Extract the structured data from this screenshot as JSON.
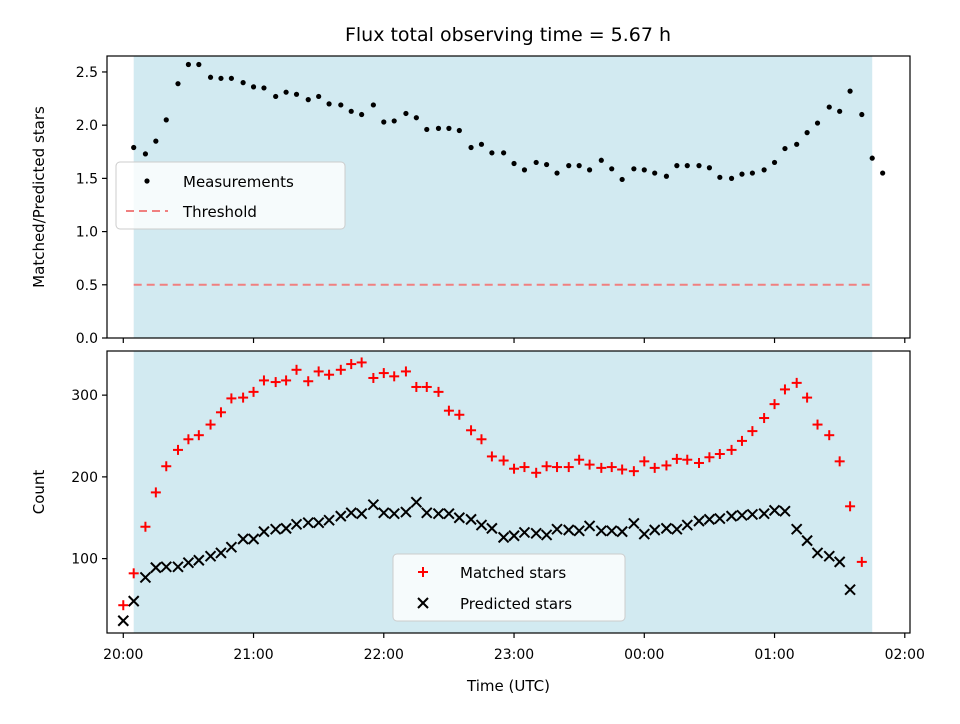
{
  "chart_data": {
    "title": "Flux total observing time = 5.67 h",
    "colors": {
      "shade": "#add8e6",
      "measurements": "#000000",
      "threshold": "#f08080",
      "matched": "#ff0000",
      "predicted": "#000000"
    },
    "xlabel": "Time (UTC)",
    "x_tick_labels": [
      "20:00",
      "21:00",
      "22:00",
      "23:00",
      "00:00",
      "01:00",
      "02:00"
    ],
    "x_range_hours": [
      19.875,
      26.04
    ],
    "observing_window_hours": [
      20.08,
      25.75
    ],
    "panels": [
      {
        "type": "scatter",
        "ylabel": "Matched/Predicted stars",
        "ylim": [
          0,
          2.65
        ],
        "y_ticks": [
          "0.0",
          "0.5",
          "1.0",
          "1.5",
          "2.0",
          "2.5"
        ],
        "legend": {
          "placement": "center-left",
          "entries": [
            "Measurements",
            "Threshold"
          ]
        },
        "threshold": 0.5,
        "series": [
          {
            "name": "Measurements",
            "marker": "dot",
            "points": [
              [
                20.08,
                1.79
              ],
              [
                20.17,
                1.73
              ],
              [
                20.25,
                1.85
              ],
              [
                20.33,
                2.05
              ],
              [
                20.42,
                2.39
              ],
              [
                20.5,
                2.57
              ],
              [
                20.58,
                2.57
              ],
              [
                20.67,
                2.45
              ],
              [
                20.75,
                2.44
              ],
              [
                20.83,
                2.44
              ],
              [
                20.92,
                2.4
              ],
              [
                21.0,
                2.36
              ],
              [
                21.08,
                2.35
              ],
              [
                21.17,
                2.27
              ],
              [
                21.25,
                2.31
              ],
              [
                21.33,
                2.29
              ],
              [
                21.42,
                2.24
              ],
              [
                21.5,
                2.27
              ],
              [
                21.58,
                2.2
              ],
              [
                21.67,
                2.19
              ],
              [
                21.75,
                2.13
              ],
              [
                21.83,
                2.1
              ],
              [
                21.92,
                2.19
              ],
              [
                22.0,
                2.03
              ],
              [
                22.08,
                2.04
              ],
              [
                22.17,
                2.11
              ],
              [
                22.25,
                2.07
              ],
              [
                22.33,
                1.96
              ],
              [
                22.42,
                1.97
              ],
              [
                22.5,
                1.97
              ],
              [
                22.58,
                1.95
              ],
              [
                22.67,
                1.79
              ],
              [
                22.75,
                1.82
              ],
              [
                22.83,
                1.74
              ],
              [
                22.92,
                1.74
              ],
              [
                23.0,
                1.64
              ],
              [
                23.08,
                1.58
              ],
              [
                23.17,
                1.65
              ],
              [
                23.25,
                1.63
              ],
              [
                23.33,
                1.55
              ],
              [
                23.42,
                1.62
              ],
              [
                23.5,
                1.62
              ],
              [
                23.58,
                1.58
              ],
              [
                23.67,
                1.67
              ],
              [
                23.75,
                1.59
              ],
              [
                23.83,
                1.49
              ],
              [
                23.92,
                1.59
              ],
              [
                24.0,
                1.58
              ],
              [
                24.08,
                1.55
              ],
              [
                24.17,
                1.52
              ],
              [
                24.25,
                1.62
              ],
              [
                24.33,
                1.62
              ],
              [
                24.42,
                1.62
              ],
              [
                24.5,
                1.6
              ],
              [
                24.58,
                1.51
              ],
              [
                24.67,
                1.5
              ],
              [
                24.75,
                1.54
              ],
              [
                24.83,
                1.55
              ],
              [
                24.92,
                1.58
              ],
              [
                25.0,
                1.65
              ],
              [
                25.08,
                1.78
              ],
              [
                25.17,
                1.82
              ],
              [
                25.25,
                1.93
              ],
              [
                25.33,
                2.02
              ],
              [
                25.42,
                2.17
              ],
              [
                25.5,
                2.13
              ],
              [
                25.58,
                2.32
              ],
              [
                25.67,
                2.1
              ],
              [
                25.75,
                1.69
              ],
              [
                25.83,
                1.55
              ]
            ]
          }
        ]
      },
      {
        "type": "scatter",
        "ylabel": "Count",
        "ylim": [
          9,
          354
        ],
        "y_ticks": [
          "100",
          "200",
          "300"
        ],
        "legend": {
          "placement": "lower-center",
          "entries": [
            "Matched stars",
            "Predicted stars"
          ]
        },
        "series": [
          {
            "name": "Matched stars",
            "marker": "plus",
            "points": [
              [
                20.0,
                43
              ],
              [
                20.08,
                82
              ],
              [
                20.17,
                139
              ],
              [
                20.25,
                181
              ],
              [
                20.33,
                213
              ],
              [
                20.42,
                233
              ],
              [
                20.5,
                246
              ],
              [
                20.58,
                251
              ],
              [
                20.67,
                264
              ],
              [
                20.75,
                279
              ],
              [
                20.83,
                296
              ],
              [
                20.92,
                297
              ],
              [
                21.0,
                304
              ],
              [
                21.08,
                318
              ],
              [
                21.17,
                316
              ],
              [
                21.25,
                318
              ],
              [
                21.33,
                331
              ],
              [
                21.42,
                317
              ],
              [
                21.5,
                329
              ],
              [
                21.58,
                325
              ],
              [
                21.67,
                331
              ],
              [
                21.75,
                338
              ],
              [
                21.83,
                340
              ],
              [
                21.92,
                321
              ],
              [
                22.0,
                327
              ],
              [
                22.08,
                323
              ],
              [
                22.17,
                329
              ],
              [
                22.25,
                310
              ],
              [
                22.33,
                310
              ],
              [
                22.42,
                304
              ],
              [
                22.5,
                281
              ],
              [
                22.58,
                276
              ],
              [
                22.67,
                257
              ],
              [
                22.75,
                246
              ],
              [
                22.83,
                225
              ],
              [
                22.92,
                220
              ],
              [
                23.0,
                210
              ],
              [
                23.08,
                212
              ],
              [
                23.17,
                205
              ],
              [
                23.25,
                213
              ],
              [
                23.33,
                212
              ],
              [
                23.42,
                212
              ],
              [
                23.5,
                221
              ],
              [
                23.58,
                215
              ],
              [
                23.67,
                211
              ],
              [
                23.75,
                212
              ],
              [
                23.83,
                209
              ],
              [
                23.92,
                207
              ],
              [
                24.0,
                219
              ],
              [
                24.08,
                211
              ],
              [
                24.17,
                214
              ],
              [
                24.25,
                222
              ],
              [
                24.33,
                221
              ],
              [
                24.42,
                217
              ],
              [
                24.5,
                224
              ],
              [
                24.58,
                228
              ],
              [
                24.67,
                233
              ],
              [
                24.75,
                244
              ],
              [
                24.83,
                256
              ],
              [
                24.92,
                272
              ],
              [
                25.0,
                289
              ],
              [
                25.08,
                307
              ],
              [
                25.17,
                315
              ],
              [
                25.25,
                297
              ],
              [
                25.33,
                264
              ],
              [
                25.42,
                251
              ],
              [
                25.5,
                219
              ],
              [
                25.58,
                164
              ],
              [
                25.67,
                96
              ]
            ]
          },
          {
            "name": "Predicted stars",
            "marker": "x",
            "points": [
              [
                20.0,
                24
              ],
              [
                20.08,
                48
              ],
              [
                20.17,
                77
              ],
              [
                20.25,
                89
              ],
              [
                20.33,
                90
              ],
              [
                20.42,
                90
              ],
              [
                20.5,
                95
              ],
              [
                20.58,
                98
              ],
              [
                20.67,
                103
              ],
              [
                20.75,
                107
              ],
              [
                20.83,
                114
              ],
              [
                20.92,
                124
              ],
              [
                21.0,
                124
              ],
              [
                21.08,
                133
              ],
              [
                21.17,
                136
              ],
              [
                21.25,
                137
              ],
              [
                21.33,
                142
              ],
              [
                21.42,
                144
              ],
              [
                21.5,
                144
              ],
              [
                21.58,
                147
              ],
              [
                21.67,
                152
              ],
              [
                21.75,
                156
              ],
              [
                21.83,
                155
              ],
              [
                21.92,
                166
              ],
              [
                22.0,
                156
              ],
              [
                22.08,
                155
              ],
              [
                22.17,
                157
              ],
              [
                22.25,
                169
              ],
              [
                22.33,
                156
              ],
              [
                22.42,
                155
              ],
              [
                22.5,
                155
              ],
              [
                22.58,
                150
              ],
              [
                22.67,
                148
              ],
              [
                22.75,
                141
              ],
              [
                22.83,
                137
              ],
              [
                22.92,
                126
              ],
              [
                23.0,
                128
              ],
              [
                23.08,
                132
              ],
              [
                23.17,
                131
              ],
              [
                23.25,
                129
              ],
              [
                23.33,
                136
              ],
              [
                23.42,
                135
              ],
              [
                23.5,
                134
              ],
              [
                23.58,
                140
              ],
              [
                23.67,
                134
              ],
              [
                23.75,
                134
              ],
              [
                23.83,
                133
              ],
              [
                23.92,
                143
              ],
              [
                24.0,
                130
              ],
              [
                24.08,
                135
              ],
              [
                24.17,
                137
              ],
              [
                24.25,
                136
              ],
              [
                24.33,
                141
              ],
              [
                24.42,
                146
              ],
              [
                24.5,
                148
              ],
              [
                24.58,
                149
              ],
              [
                24.67,
                152
              ],
              [
                24.75,
                153
              ],
              [
                24.83,
                154
              ],
              [
                24.92,
                155
              ],
              [
                25.0,
                159
              ],
              [
                25.08,
                158
              ],
              [
                25.17,
                136
              ],
              [
                25.25,
                122
              ],
              [
                25.33,
                107
              ],
              [
                25.42,
                103
              ],
              [
                25.5,
                96
              ],
              [
                25.58,
                62
              ]
            ]
          }
        ]
      }
    ]
  }
}
